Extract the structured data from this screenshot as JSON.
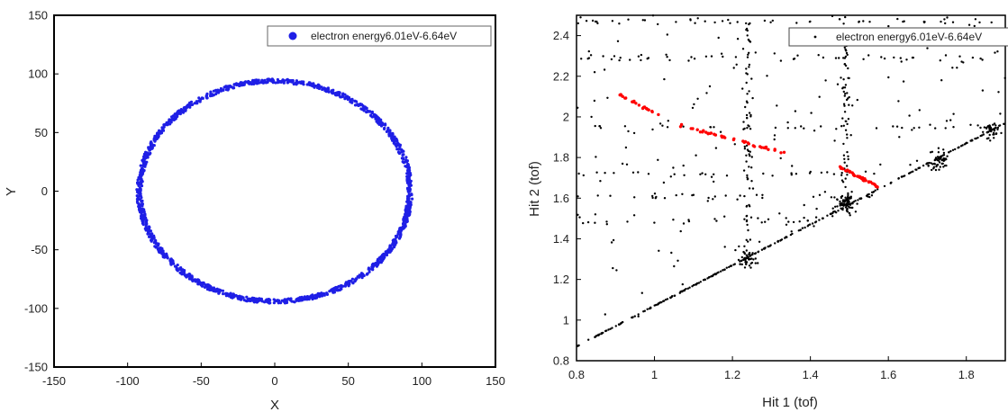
{
  "chart_data": [
    {
      "type": "scatter",
      "xlabel": "X",
      "ylabel": "Y",
      "xlim": [
        -150,
        150
      ],
      "ylim": [
        -150,
        150
      ],
      "xticks": [
        -150,
        -100,
        -50,
        0,
        50,
        100,
        150
      ],
      "yticks": [
        -150,
        -100,
        -50,
        0,
        50,
        100,
        150
      ],
      "legend": {
        "label": "electron energy6.01eV-6.64eV",
        "placement": "top-right",
        "marker_color": "#1f1fe6"
      },
      "grid": false,
      "series": [
        {
          "name": "electron energy6.01eV-6.64eV",
          "color": "#1f1fe6",
          "shape": "ring",
          "center": [
            0,
            0
          ],
          "radius_x": 92,
          "radius_y": 94,
          "thickness": 3.5,
          "points": 1400
        }
      ]
    },
    {
      "type": "scatter",
      "xlabel": "Hit 1 (tof)",
      "ylabel": "Hit 2 (tof)",
      "xlim": [
        0.8,
        1.9
      ],
      "ylim": [
        0.8,
        2.5
      ],
      "xticks": [
        0.8,
        1,
        1.2,
        1.4,
        1.6,
        1.8
      ],
      "yticks": [
        0.8,
        1,
        1.2,
        1.4,
        1.6,
        1.8,
        2,
        2.2,
        2.4
      ],
      "legend": {
        "label": "electron energy6.01eV-6.64eV",
        "placement": "top-right",
        "marker_color": "#000000"
      },
      "grid": false,
      "series": [
        {
          "name": "electron energy6.01eV-6.64eV",
          "color": "#000000",
          "diagonal_line": {
            "from": [
              0.8,
              0.87
            ],
            "to": [
              1.9,
              1.97
            ],
            "points": 260
          },
          "bands_y": [
            1.49,
            1.61,
            1.72,
            1.95,
            2.29,
            2.47
          ],
          "clusters": [
            {
              "x": 1.24,
              "y": 1.3,
              "n": 45
            },
            {
              "x": 1.49,
              "y": 1.57,
              "n": 70
            },
            {
              "x": 1.73,
              "y": 1.79,
              "n": 50
            },
            {
              "x": 1.87,
              "y": 1.93,
              "n": 25
            }
          ],
          "column_x": [
            1.24,
            1.49
          ],
          "background": 220
        },
        {
          "name": "",
          "color": "#ff0000",
          "segments": [
            {
              "from": [
                0.91,
                2.11
              ],
              "to": [
                1.01,
                2.01
              ],
              "n": 22
            },
            {
              "from": [
                1.06,
                1.96
              ],
              "to": [
                1.34,
                1.82
              ],
              "n": 40
            },
            {
              "from": [
                1.47,
                1.76
              ],
              "to": [
                1.58,
                1.65
              ],
              "n": 40
            }
          ]
        }
      ]
    }
  ]
}
